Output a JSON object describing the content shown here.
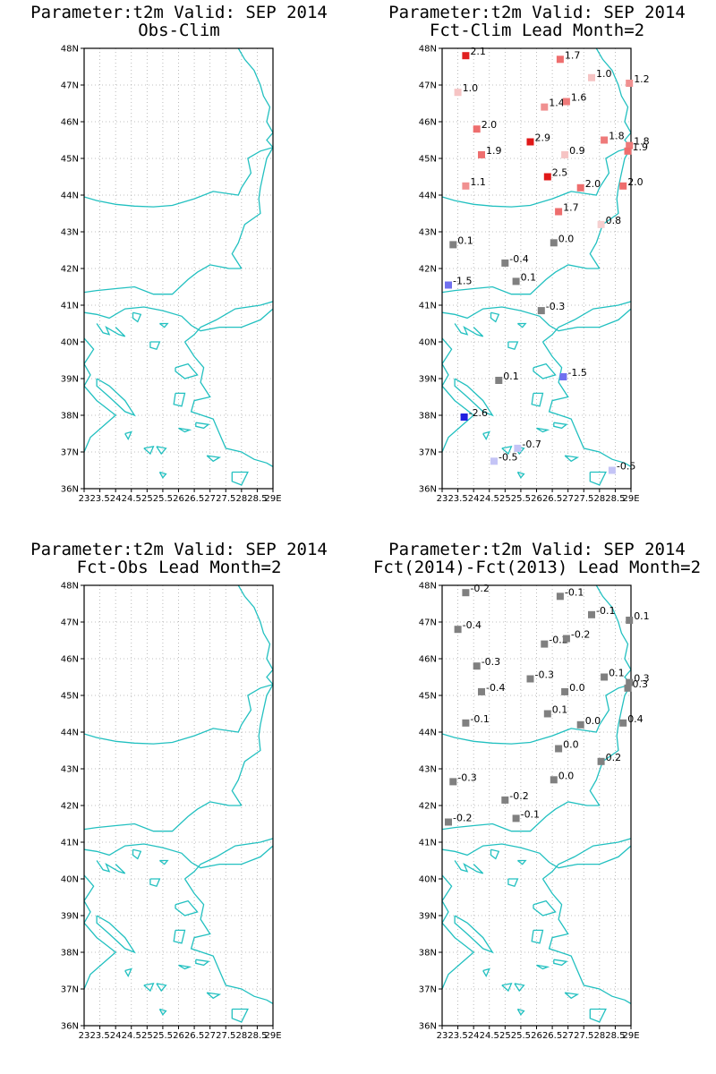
{
  "colors": {
    "coast": "#22c0c0",
    "grid": "#aaaaaa",
    "neutral": "#808080"
  },
  "axes": {
    "lat_labels": [
      "36N",
      "37N",
      "38N",
      "39N",
      "40N",
      "41N",
      "42N",
      "43N",
      "44N",
      "45N",
      "46N",
      "47N",
      "48N"
    ],
    "lon_labels": [
      "23",
      "23.5",
      "24",
      "24.5",
      "25",
      "25.5",
      "26",
      "26.5",
      "27",
      "27.5",
      "28",
      "28.5",
      "29E"
    ]
  },
  "panels": [
    {
      "title1": "Parameter:t2m Valid: SEP 2014",
      "title2": "Obs-Clim",
      "stations": []
    },
    {
      "title1": "Parameter:t2m Valid: SEP 2014",
      "title2": "Fct-Clim Lead Month=2",
      "stations": [
        {
          "lon": 23.75,
          "lat": 47.8,
          "label": "2.1",
          "color": "#e02020"
        },
        {
          "lon": 26.75,
          "lat": 47.7,
          "label": "1.7",
          "color": "#ee6e6e"
        },
        {
          "lon": 27.75,
          "lat": 47.2,
          "label": "1.0",
          "color": "#f6c4c4"
        },
        {
          "lon": 28.95,
          "lat": 47.05,
          "label": "1.2",
          "color": "#f09090"
        },
        {
          "lon": 23.5,
          "lat": 46.8,
          "label": "1.0",
          "color": "#f6c4c4"
        },
        {
          "lon": 26.25,
          "lat": 46.4,
          "label": "1.4",
          "color": "#f09090"
        },
        {
          "lon": 26.95,
          "lat": 46.55,
          "label": "1.6",
          "color": "#ee7a7a"
        },
        {
          "lon": 24.1,
          "lat": 45.8,
          "label": "2.0",
          "color": "#ee6e6e"
        },
        {
          "lon": 25.8,
          "lat": 45.45,
          "label": "2.9",
          "color": "#e01818"
        },
        {
          "lon": 28.15,
          "lat": 45.5,
          "label": "1.8",
          "color": "#ee7a7a"
        },
        {
          "lon": 28.95,
          "lat": 45.35,
          "label": "1.8",
          "color": "#ee7a7a"
        },
        {
          "lon": 28.9,
          "lat": 45.2,
          "label": "1.9",
          "color": "#ee6e6e"
        },
        {
          "lon": 24.25,
          "lat": 45.1,
          "label": "1.9",
          "color": "#ee6e6e"
        },
        {
          "lon": 26.9,
          "lat": 45.1,
          "label": "0.9",
          "color": "#f6c4c4"
        },
        {
          "lon": 26.35,
          "lat": 44.5,
          "label": "2.5",
          "color": "#e01818"
        },
        {
          "lon": 23.75,
          "lat": 44.25,
          "label": "1.1",
          "color": "#f09090"
        },
        {
          "lon": 27.4,
          "lat": 44.2,
          "label": "2.0",
          "color": "#ee6e6e"
        },
        {
          "lon": 28.75,
          "lat": 44.25,
          "label": "2.0",
          "color": "#ee6e6e"
        },
        {
          "lon": 26.7,
          "lat": 43.55,
          "label": "1.7",
          "color": "#ee6e6e"
        },
        {
          "lon": 28.05,
          "lat": 43.2,
          "label": "0.8",
          "color": "#f6d0d0"
        },
        {
          "lon": 23.35,
          "lat": 42.65,
          "label": "0.1",
          "color": "#808080"
        },
        {
          "lon": 26.55,
          "lat": 42.7,
          "label": "0.0",
          "color": "#808080"
        },
        {
          "lon": 25.0,
          "lat": 42.15,
          "label": "-0.4",
          "color": "#808080"
        },
        {
          "lon": 25.35,
          "lat": 41.65,
          "label": "0.1",
          "color": "#808080"
        },
        {
          "lon": 23.2,
          "lat": 41.55,
          "label": "-1.5",
          "color": "#7070f0"
        },
        {
          "lon": 26.15,
          "lat": 40.85,
          "label": "-0.3",
          "color": "#808080"
        },
        {
          "lon": 24.8,
          "lat": 38.95,
          "label": "0.1",
          "color": "#808080"
        },
        {
          "lon": 26.85,
          "lat": 39.05,
          "label": "-1.5",
          "color": "#7070f0"
        },
        {
          "lon": 23.7,
          "lat": 37.95,
          "label": "-2.6",
          "color": "#2020e0"
        },
        {
          "lon": 25.4,
          "lat": 37.1,
          "label": "-0.7",
          "color": "#c4c4f6"
        },
        {
          "lon": 24.65,
          "lat": 36.75,
          "label": "-0.5",
          "color": "#c4c4f6"
        },
        {
          "lon": 28.4,
          "lat": 36.5,
          "label": "-0.5",
          "color": "#c4c4f6"
        }
      ]
    },
    {
      "title1": "Parameter:t2m Valid: SEP 2014",
      "title2": "Fct-Obs Lead Month=2",
      "stations": []
    },
    {
      "title1": "Parameter:t2m Valid: SEP 2014",
      "title2": "Fct(2014)-Fct(2013) Lead Month=2",
      "stations": [
        {
          "lon": 23.75,
          "lat": 47.8,
          "label": "-0.2",
          "color": "#808080"
        },
        {
          "lon": 26.75,
          "lat": 47.7,
          "label": "-0.1",
          "color": "#808080"
        },
        {
          "lon": 27.75,
          "lat": 47.2,
          "label": "-0.1",
          "color": "#808080"
        },
        {
          "lon": 28.95,
          "lat": 47.05,
          "label": "0.1",
          "color": "#808080"
        },
        {
          "lon": 23.5,
          "lat": 46.8,
          "label": "-0.4",
          "color": "#808080"
        },
        {
          "lon": 26.25,
          "lat": 46.4,
          "label": "-0.2",
          "color": "#808080"
        },
        {
          "lon": 26.95,
          "lat": 46.55,
          "label": "-0.2",
          "color": "#808080"
        },
        {
          "lon": 24.1,
          "lat": 45.8,
          "label": "-0.3",
          "color": "#808080"
        },
        {
          "lon": 25.8,
          "lat": 45.45,
          "label": "-0.3",
          "color": "#808080"
        },
        {
          "lon": 28.15,
          "lat": 45.5,
          "label": "0.1",
          "color": "#808080"
        },
        {
          "lon": 28.95,
          "lat": 45.35,
          "label": "0.3",
          "color": "#808080"
        },
        {
          "lon": 28.9,
          "lat": 45.2,
          "label": "0.3",
          "color": "#808080"
        },
        {
          "lon": 24.25,
          "lat": 45.1,
          "label": "-0.4",
          "color": "#808080"
        },
        {
          "lon": 26.9,
          "lat": 45.1,
          "label": "0.0",
          "color": "#808080"
        },
        {
          "lon": 26.35,
          "lat": 44.5,
          "label": "0.1",
          "color": "#808080"
        },
        {
          "lon": 23.75,
          "lat": 44.25,
          "label": "-0.1",
          "color": "#808080"
        },
        {
          "lon": 27.4,
          "lat": 44.2,
          "label": "0.0",
          "color": "#808080"
        },
        {
          "lon": 28.75,
          "lat": 44.25,
          "label": "0.4",
          "color": "#808080"
        },
        {
          "lon": 26.7,
          "lat": 43.55,
          "label": "0.0",
          "color": "#808080"
        },
        {
          "lon": 28.05,
          "lat": 43.2,
          "label": "0.2",
          "color": "#808080"
        },
        {
          "lon": 23.35,
          "lat": 42.65,
          "label": "-0.3",
          "color": "#808080"
        },
        {
          "lon": 26.55,
          "lat": 42.7,
          "label": "0.0",
          "color": "#808080"
        },
        {
          "lon": 25.0,
          "lat": 42.15,
          "label": "-0.2",
          "color": "#808080"
        },
        {
          "lon": 25.35,
          "lat": 41.65,
          "label": "-0.1",
          "color": "#808080"
        },
        {
          "lon": 23.2,
          "lat": 41.55,
          "label": "-0.2",
          "color": "#808080"
        }
      ]
    }
  ]
}
